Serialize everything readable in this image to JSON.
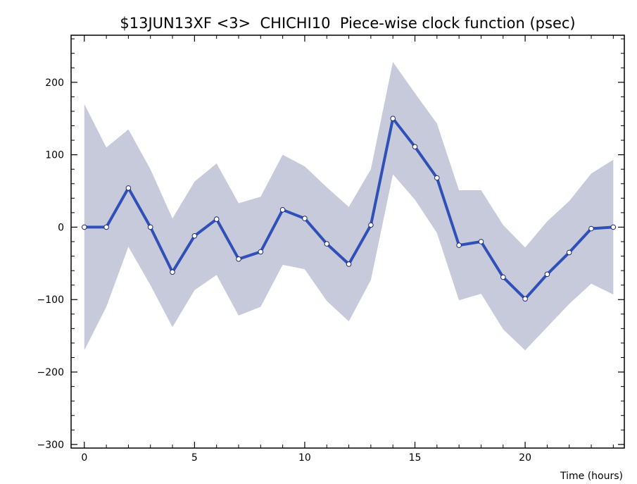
{
  "chart_data": {
    "type": "line",
    "title": "$13JUN13XF <3>  CHICHI10  Piece-wise clock function (psec)",
    "xlabel": "Time (hours)",
    "ylabel": "",
    "xlim": [
      -0.6,
      24.5
    ],
    "ylim": [
      -305,
      265
    ],
    "x_ticks": [
      0,
      5,
      10,
      15,
      20
    ],
    "x_tick_labels": [
      "0",
      "5",
      "10",
      "15",
      "20"
    ],
    "y_ticks": [
      -300,
      -200,
      -100,
      0,
      100,
      200
    ],
    "y_tick_labels": [
      "−300",
      "−200",
      "−100",
      "0",
      "100",
      "200"
    ],
    "grid": false,
    "legend": "none",
    "colors": {
      "line": "#3050b8",
      "band": "#c6cadb",
      "marker_fill": "#ffffff"
    },
    "series": [
      {
        "x": [
          0,
          1,
          2,
          3,
          4,
          5,
          6,
          7,
          8,
          9,
          10,
          11,
          12,
          13,
          14,
          15,
          16,
          17,
          18,
          19,
          20,
          21,
          22,
          23,
          24
        ],
        "values": [
          0,
          0,
          54,
          0,
          -62,
          -12,
          11,
          -44,
          -34,
          24,
          12,
          -23,
          -51,
          3,
          150,
          111,
          68,
          -25,
          -20,
          -69,
          -99,
          -65,
          -35,
          -2,
          0
        ],
        "upper": [
          170,
          110,
          135,
          80,
          12,
          63,
          88,
          33,
          42,
          100,
          84,
          55,
          28,
          80,
          228,
          185,
          143,
          51,
          51,
          3,
          -28,
          8,
          36,
          74,
          93
        ],
        "lower": [
          -170,
          -110,
          -27,
          -80,
          -138,
          -87,
          -66,
          -122,
          -110,
          -52,
          -58,
          -102,
          -130,
          -73,
          73,
          38,
          -8,
          -101,
          -92,
          -141,
          -170,
          -138,
          -106,
          -78,
          -93
        ]
      }
    ]
  }
}
